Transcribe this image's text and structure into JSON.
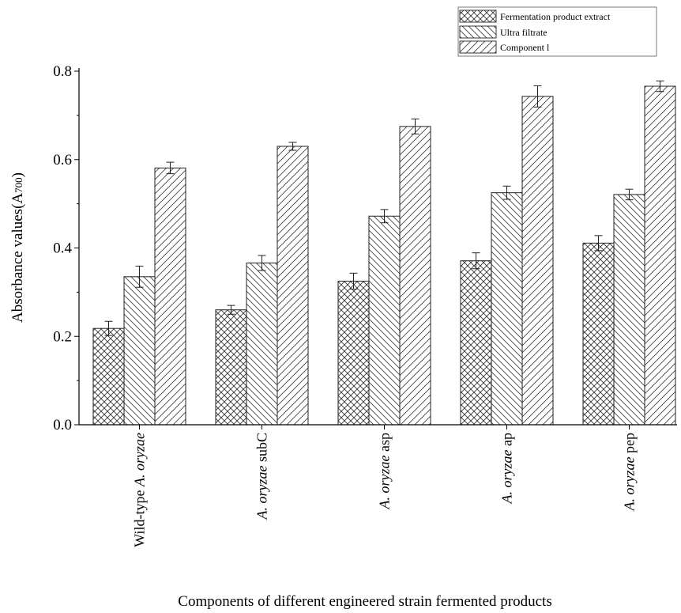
{
  "chart_data": {
    "type": "bar",
    "xlabel": "Components of different engineered strain fermented products",
    "ylabel_main": "Absorbance values(A",
    "ylabel_sub": "700",
    "ylabel_end": ")",
    "ylim": [
      0,
      0.8
    ],
    "yticks": [
      "0.0",
      "0.2",
      "0.4",
      "0.6",
      "0.8"
    ],
    "grid": false,
    "legend_position": "top-right",
    "categories": [
      {
        "prefix": "Wild-type ",
        "italic": "A. oryzae",
        "suffix": ""
      },
      {
        "prefix": "",
        "italic": "A. oryzae",
        "suffix": " subC"
      },
      {
        "prefix": "",
        "italic": "A. oryzae",
        "suffix": " asp"
      },
      {
        "prefix": "",
        "italic": "A. oryzae",
        "suffix": " ap"
      },
      {
        "prefix": "",
        "italic": "A. oryzae",
        "suffix": " pep"
      }
    ],
    "series": [
      {
        "name": "Fermentation product extract",
        "pattern": "crosshatch",
        "values": [
          0.218,
          0.26,
          0.325,
          0.371,
          0.411
        ],
        "errors": [
          0.016,
          0.01,
          0.018,
          0.018,
          0.017
        ]
      },
      {
        "name": "Ultra filtrate",
        "pattern": "backslash",
        "values": [
          0.335,
          0.366,
          0.472,
          0.525,
          0.521
        ],
        "errors": [
          0.024,
          0.017,
          0.015,
          0.015,
          0.012
        ]
      },
      {
        "name": "Component l",
        "pattern": "slash",
        "values": [
          0.581,
          0.63,
          0.675,
          0.743,
          0.766
        ],
        "errors": [
          0.013,
          0.009,
          0.017,
          0.024,
          0.012
        ]
      }
    ]
  }
}
